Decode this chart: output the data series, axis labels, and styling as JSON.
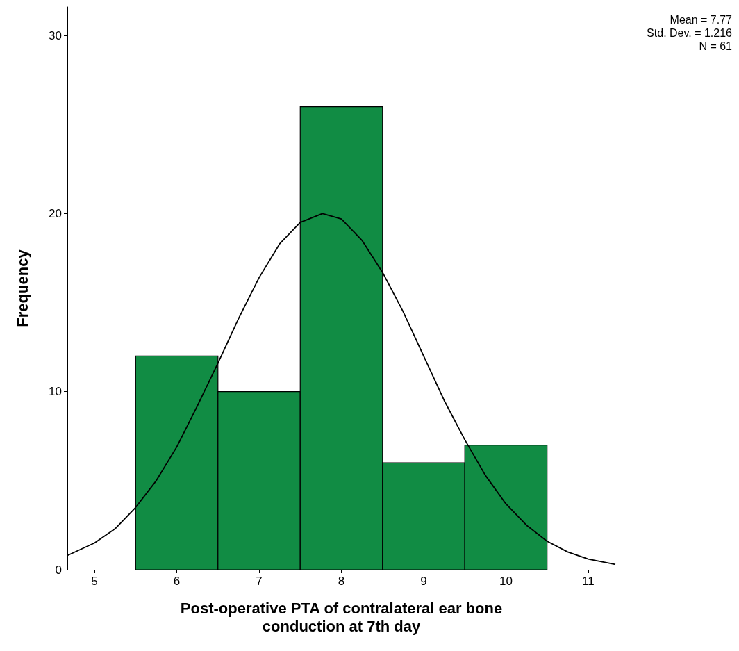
{
  "chart_data": {
    "type": "histogram",
    "xlabel": "Post-operative PTA of contralateral ear bone\nconduction at 7th day",
    "ylabel": "Frequency",
    "bins": [
      5.5,
      6.5,
      7.5,
      8.5,
      9.5,
      10.5
    ],
    "values": [
      12,
      10,
      26,
      6,
      7
    ],
    "color": "#118c44",
    "series": [
      {
        "type": "line",
        "color": "#000000",
        "x": [
          4.67,
          5,
          5.25,
          5.5,
          5.75,
          6,
          6.25,
          6.5,
          6.75,
          7,
          7.25,
          7.5,
          7.77,
          8,
          8.25,
          8.5,
          8.75,
          9,
          9.25,
          9.5,
          9.75,
          10,
          10.25,
          10.5,
          10.75,
          11,
          11.33
        ],
        "values": [
          0.8,
          1.5,
          2.3,
          3.5,
          5,
          6.9,
          9.2,
          11.6,
          14.1,
          16.4,
          18.3,
          19.5,
          20,
          19.7,
          18.5,
          16.7,
          14.5,
          12,
          9.5,
          7.3,
          5.3,
          3.7,
          2.5,
          1.6,
          1,
          0.6,
          0.3
        ]
      }
    ],
    "xlim": [
      4.67,
      11.33
    ],
    "xticks": [
      5,
      6,
      7,
      8,
      9,
      10,
      11
    ],
    "ylim": [
      0,
      31.6
    ],
    "yticks": [
      0,
      10,
      20,
      30
    ],
    "grid": false,
    "annotations": [
      "Mean = 7.77",
      "Std. Dev. = 1.216",
      "N = 61"
    ]
  }
}
